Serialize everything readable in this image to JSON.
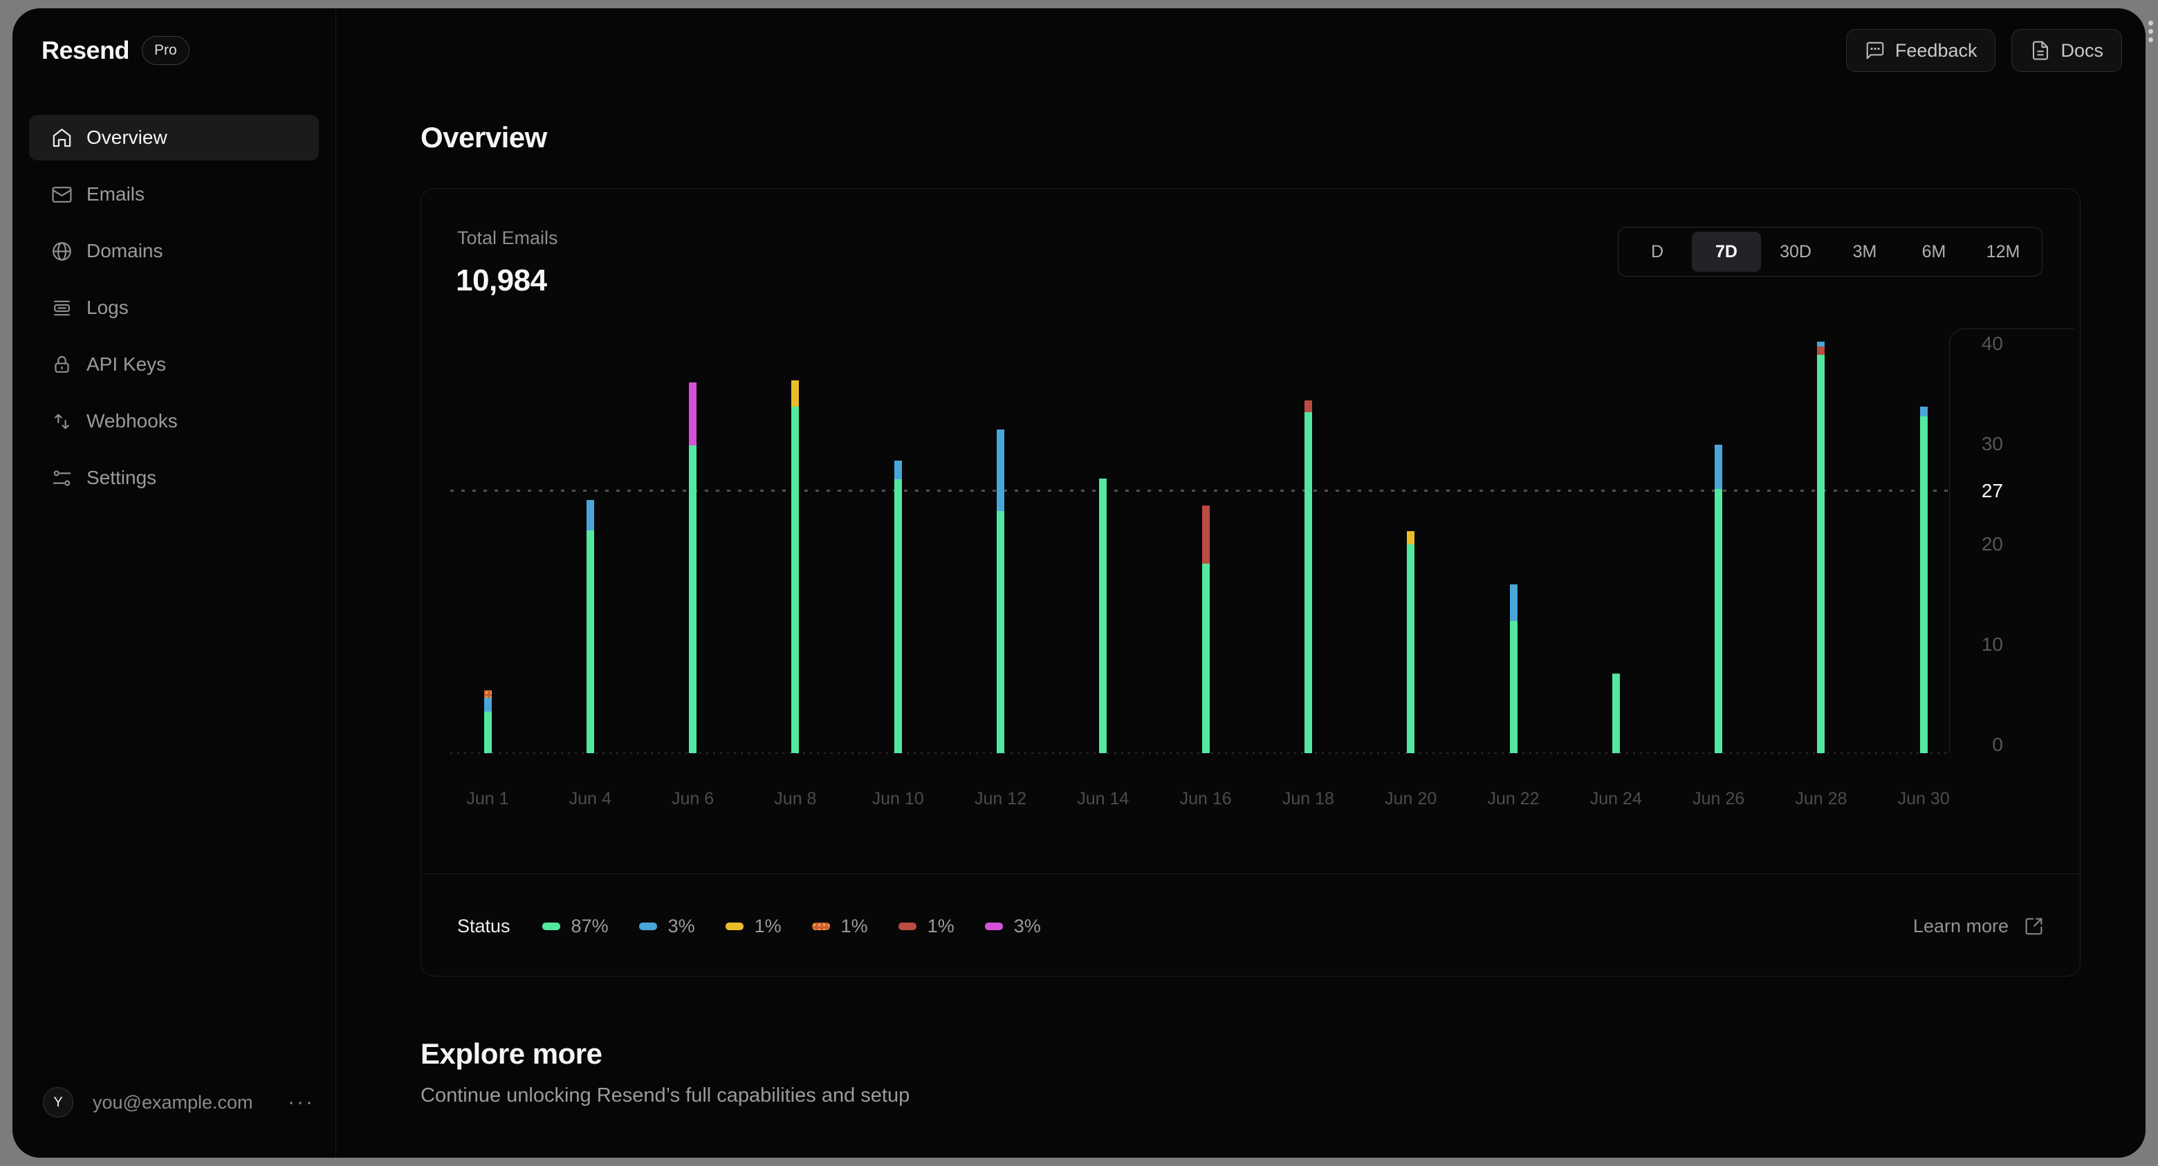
{
  "sidebar": {
    "logo": "Resend",
    "badge": "Pro",
    "items": [
      {
        "label": "Overview",
        "icon": "home-icon",
        "active": true
      },
      {
        "label": "Emails",
        "icon": "mail-icon",
        "active": false
      },
      {
        "label": "Domains",
        "icon": "globe-icon",
        "active": false
      },
      {
        "label": "Logs",
        "icon": "logs-icon",
        "active": false
      },
      {
        "label": "API Keys",
        "icon": "lock-icon",
        "active": false
      },
      {
        "label": "Webhooks",
        "icon": "arrows-up-down-icon",
        "active": false
      },
      {
        "label": "Settings",
        "icon": "sliders-icon",
        "active": false
      }
    ],
    "user": {
      "avatar_initial": "Y",
      "email": "you@example.com",
      "menu": "···"
    }
  },
  "header": {
    "feedback_label": "Feedback",
    "docs_label": "Docs"
  },
  "page": {
    "title": "Overview"
  },
  "card": {
    "metric_label": "Total Emails",
    "metric_value": "10,984",
    "ranges": [
      {
        "label": "D",
        "active": false
      },
      {
        "label": "7D",
        "active": true
      },
      {
        "label": "30D",
        "active": false
      },
      {
        "label": "3M",
        "active": false
      },
      {
        "label": "6M",
        "active": false
      },
      {
        "label": "12M",
        "active": false
      }
    ],
    "legend": {
      "title": "Status",
      "items": [
        {
          "color": "green",
          "pct": "87%"
        },
        {
          "color": "blue",
          "pct": "3%"
        },
        {
          "color": "yellow",
          "pct": "1%"
        },
        {
          "color": "orange",
          "pct": "1%"
        },
        {
          "color": "red",
          "pct": "1%"
        },
        {
          "color": "magenta",
          "pct": "3%"
        }
      ]
    },
    "learn_more": "Learn more"
  },
  "explore": {
    "title": "Explore more",
    "subtitle": "Continue unlocking Resend’s full capabilities and setup"
  },
  "chart_data": {
    "type": "bar",
    "stacked": true,
    "title": "Total Emails",
    "xlabel": "",
    "ylabel": "",
    "ylim": [
      0,
      44
    ],
    "y_ticks": [
      0,
      10,
      20,
      27,
      30,
      40
    ],
    "highlight_tick": 27,
    "reference_line": 27,
    "grid": false,
    "legend_position": "bottom",
    "colors": {
      "green": "#53e8a0",
      "blue": "#4aa5d9",
      "yellow": "#e9bd2a",
      "orange": "#cd5f36",
      "red": "#bc4b41",
      "magenta": "#d551d8"
    },
    "categories": [
      "Jun 1",
      "Jun 4",
      "Jun 6",
      "Jun 8",
      "Jun 10",
      "Jun 12",
      "Jun 14",
      "Jun 16",
      "Jun 18",
      "Jun 20",
      "Jun 22",
      "Jun 24",
      "Jun 26",
      "Jun 28",
      "Jun 30"
    ],
    "bars": [
      {
        "date": "Jun 1",
        "segments": [
          {
            "color": "green",
            "value": 4.3
          },
          {
            "color": "blue",
            "value": 1.4
          },
          {
            "color": "orange",
            "value": 0.8
          }
        ]
      },
      {
        "date": "Jun 4",
        "segments": [
          {
            "color": "green",
            "value": 22.9
          },
          {
            "color": "blue",
            "value": 3.2
          }
        ]
      },
      {
        "date": "Jun 6",
        "segments": [
          {
            "color": "green",
            "value": 31.7
          },
          {
            "color": "magenta",
            "value": 6.5
          }
        ]
      },
      {
        "date": "Jun 8",
        "segments": [
          {
            "color": "green",
            "value": 35.7
          },
          {
            "color": "yellow",
            "value": 2.7
          }
        ]
      },
      {
        "date": "Jun 10",
        "segments": [
          {
            "color": "green",
            "value": 28.2
          },
          {
            "color": "blue",
            "value": 1.9
          }
        ]
      },
      {
        "date": "Jun 12",
        "segments": [
          {
            "color": "green",
            "value": 24.9
          },
          {
            "color": "blue",
            "value": 8.4
          }
        ]
      },
      {
        "date": "Jun 14",
        "segments": [
          {
            "color": "green",
            "value": 28.3
          }
        ]
      },
      {
        "date": "Jun 16",
        "segments": [
          {
            "color": "green",
            "value": 19.5
          },
          {
            "color": "red",
            "value": 6.0
          }
        ]
      },
      {
        "date": "Jun 18",
        "segments": [
          {
            "color": "green",
            "value": 35.1
          },
          {
            "color": "red",
            "value": 1.2
          }
        ]
      },
      {
        "date": "Jun 20",
        "segments": [
          {
            "color": "green",
            "value": 21.5
          },
          {
            "color": "yellow",
            "value": 1.4
          }
        ]
      },
      {
        "date": "Jun 22",
        "segments": [
          {
            "color": "green",
            "value": 13.6
          },
          {
            "color": "blue",
            "value": 3.8
          }
        ]
      },
      {
        "date": "Jun 24",
        "segments": [
          {
            "color": "green",
            "value": 8.2
          }
        ]
      },
      {
        "date": "Jun 26",
        "segments": [
          {
            "color": "green",
            "value": 27.2
          },
          {
            "color": "blue",
            "value": 4.6
          }
        ]
      },
      {
        "date": "Jun 28",
        "segments": [
          {
            "color": "green",
            "value": 41.0
          },
          {
            "color": "red",
            "value": 0.9
          },
          {
            "color": "blue",
            "value": 0.5
          }
        ]
      },
      {
        "date": "Jun 30",
        "segments": [
          {
            "color": "green",
            "value": 34.7
          },
          {
            "color": "blue",
            "value": 1.0
          }
        ]
      }
    ]
  }
}
